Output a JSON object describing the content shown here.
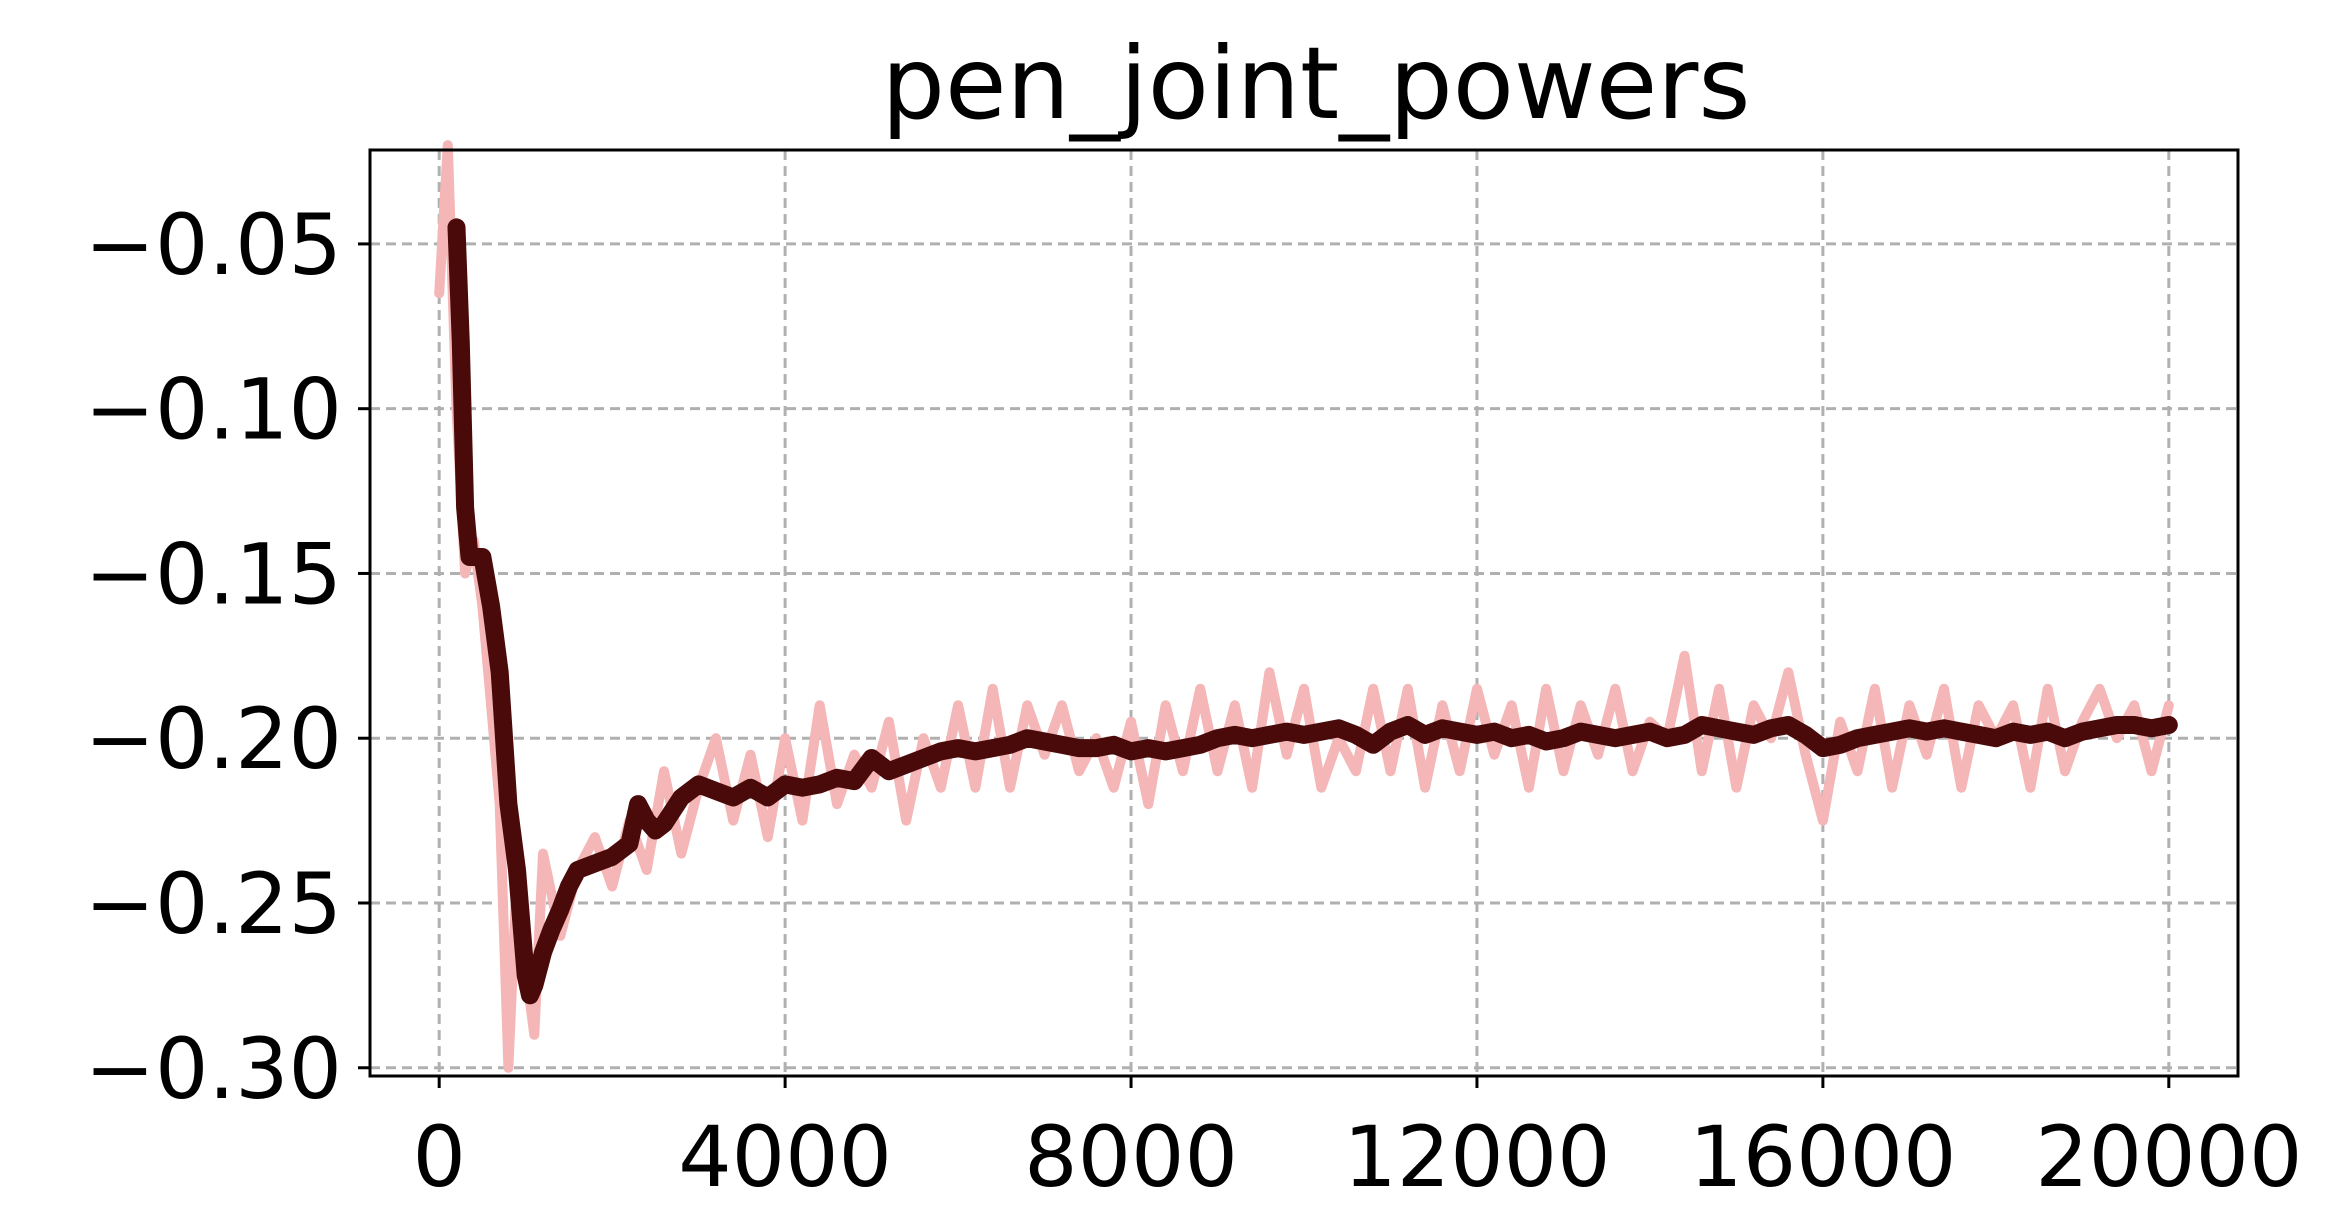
{
  "chart_data": {
    "type": "line",
    "title": "pen_joint_powers",
    "xlabel": "",
    "ylabel": "",
    "xlim": [
      -800,
      20800
    ],
    "ylim": [
      -0.3025,
      -0.0215
    ],
    "xticks": [
      0,
      4000,
      8000,
      12000,
      16000,
      20000
    ],
    "xtick_labels": [
      "0",
      "4000",
      "8000",
      "12000",
      "16000",
      "20000"
    ],
    "yticks": [
      -0.05,
      -0.1,
      -0.15,
      -0.2,
      -0.25,
      -0.3
    ],
    "ytick_labels": [
      "−0.05",
      "−0.10",
      "−0.15",
      "−0.20",
      "−0.25",
      "−0.30"
    ],
    "grid": true,
    "legend": "none",
    "series": [
      {
        "role": "raw",
        "color": "#f4b6b6",
        "x": [
          0,
          100,
          200,
          300,
          400,
          500,
          600,
          700,
          800,
          900,
          1000,
          1100,
          1200,
          1400,
          1600,
          1800,
          2000,
          2200,
          2400,
          2600,
          2800,
          3000,
          3200,
          3400,
          3600,
          3800,
          4000,
          4200,
          4400,
          4600,
          4800,
          5000,
          5200,
          5400,
          5600,
          5800,
          6000,
          6200,
          6400,
          6600,
          6800,
          7000,
          7200,
          7400,
          7600,
          7800,
          8000,
          8200,
          8400,
          8600,
          8800,
          9000,
          9200,
          9400,
          9600,
          9800,
          10000,
          10200,
          10400,
          10600,
          10800,
          11000,
          11200,
          11400,
          11600,
          11800,
          12000,
          12200,
          12400,
          12600,
          12800,
          13000,
          13200,
          13400,
          13600,
          13800,
          14000,
          14200,
          14400,
          14600,
          14800,
          15000,
          15200,
          15400,
          15600,
          15800,
          16000,
          16200,
          16400,
          16600,
          16800,
          17000,
          17200,
          17400,
          17600,
          17800,
          18000,
          18200,
          18400,
          18600,
          18800,
          19000,
          19200,
          19400,
          19600,
          19800,
          20000
        ],
        "y": [
          -0.065,
          -0.02,
          -0.1,
          -0.15,
          -0.14,
          -0.16,
          -0.19,
          -0.22,
          -0.3,
          -0.24,
          -0.27,
          -0.29,
          -0.235,
          -0.26,
          -0.24,
          -0.23,
          -0.245,
          -0.225,
          -0.24,
          -0.21,
          -0.235,
          -0.215,
          -0.2,
          -0.225,
          -0.205,
          -0.23,
          -0.2,
          -0.225,
          -0.19,
          -0.22,
          -0.205,
          -0.215,
          -0.195,
          -0.225,
          -0.2,
          -0.215,
          -0.19,
          -0.215,
          -0.185,
          -0.215,
          -0.19,
          -0.205,
          -0.19,
          -0.21,
          -0.2,
          -0.215,
          -0.195,
          -0.22,
          -0.19,
          -0.21,
          -0.185,
          -0.21,
          -0.19,
          -0.215,
          -0.18,
          -0.205,
          -0.185,
          -0.215,
          -0.2,
          -0.21,
          -0.185,
          -0.21,
          -0.185,
          -0.215,
          -0.19,
          -0.21,
          -0.185,
          -0.205,
          -0.19,
          -0.215,
          -0.185,
          -0.21,
          -0.19,
          -0.205,
          -0.185,
          -0.21,
          -0.195,
          -0.2,
          -0.175,
          -0.21,
          -0.185,
          -0.215,
          -0.19,
          -0.2,
          -0.18,
          -0.205,
          -0.225,
          -0.195,
          -0.21,
          -0.185,
          -0.215,
          -0.19,
          -0.205,
          -0.185,
          -0.215,
          -0.19,
          -0.2,
          -0.19,
          -0.215,
          -0.185,
          -0.21,
          -0.195,
          -0.185,
          -0.2,
          -0.19,
          -0.21,
          -0.19
        ]
      },
      {
        "role": "smoothed",
        "color": "#4a0a0a",
        "x": [
          200,
          250,
          300,
          350,
          400,
          500,
          600,
          700,
          800,
          900,
          1000,
          1050,
          1100,
          1200,
          1300,
          1400,
          1500,
          1600,
          1800,
          2000,
          2200,
          2300,
          2400,
          2500,
          2600,
          2700,
          2800,
          3000,
          3200,
          3400,
          3600,
          3800,
          4000,
          4200,
          4400,
          4600,
          4800,
          5000,
          5200,
          5400,
          5600,
          5800,
          6000,
          6200,
          6400,
          6600,
          6800,
          7000,
          7200,
          7400,
          7600,
          7800,
          8000,
          8200,
          8400,
          8600,
          8800,
          9000,
          9200,
          9400,
          9600,
          9800,
          10000,
          10200,
          10400,
          10600,
          10800,
          11000,
          11200,
          11400,
          11600,
          11800,
          12000,
          12200,
          12400,
          12600,
          12800,
          13000,
          13200,
          13400,
          13600,
          13800,
          14000,
          14200,
          14400,
          14600,
          14800,
          15000,
          15200,
          15400,
          15600,
          15800,
          16000,
          16200,
          16400,
          16600,
          16800,
          17000,
          17200,
          17400,
          17600,
          17800,
          18000,
          18200,
          18400,
          18600,
          18800,
          19000,
          19200,
          19400,
          19600,
          19800,
          20000
        ],
        "y": [
          -0.045,
          -0.08,
          -0.13,
          -0.145,
          -0.145,
          -0.145,
          -0.16,
          -0.18,
          -0.22,
          -0.24,
          -0.272,
          -0.278,
          -0.275,
          -0.265,
          -0.258,
          -0.252,
          -0.245,
          -0.24,
          -0.238,
          -0.236,
          -0.232,
          -0.22,
          -0.225,
          -0.228,
          -0.226,
          -0.222,
          -0.218,
          -0.214,
          -0.216,
          -0.218,
          -0.215,
          -0.218,
          -0.214,
          -0.215,
          -0.214,
          -0.212,
          -0.213,
          -0.206,
          -0.21,
          -0.208,
          -0.206,
          -0.204,
          -0.203,
          -0.204,
          -0.203,
          -0.202,
          -0.2,
          -0.201,
          -0.202,
          -0.203,
          -0.203,
          -0.202,
          -0.204,
          -0.203,
          -0.204,
          -0.203,
          -0.202,
          -0.2,
          -0.199,
          -0.2,
          -0.199,
          -0.198,
          -0.199,
          -0.198,
          -0.197,
          -0.199,
          -0.202,
          -0.198,
          -0.196,
          -0.199,
          -0.197,
          -0.198,
          -0.199,
          -0.198,
          -0.2,
          -0.199,
          -0.201,
          -0.2,
          -0.198,
          -0.199,
          -0.2,
          -0.199,
          -0.198,
          -0.2,
          -0.199,
          -0.196,
          -0.197,
          -0.198,
          -0.199,
          -0.197,
          -0.196,
          -0.199,
          -0.203,
          -0.202,
          -0.2,
          -0.199,
          -0.198,
          -0.197,
          -0.198,
          -0.197,
          -0.198,
          -0.199,
          -0.2,
          -0.198,
          -0.199,
          -0.198,
          -0.2,
          -0.198,
          -0.197,
          -0.196,
          -0.196,
          -0.197,
          -0.196
        ]
      }
    ]
  }
}
